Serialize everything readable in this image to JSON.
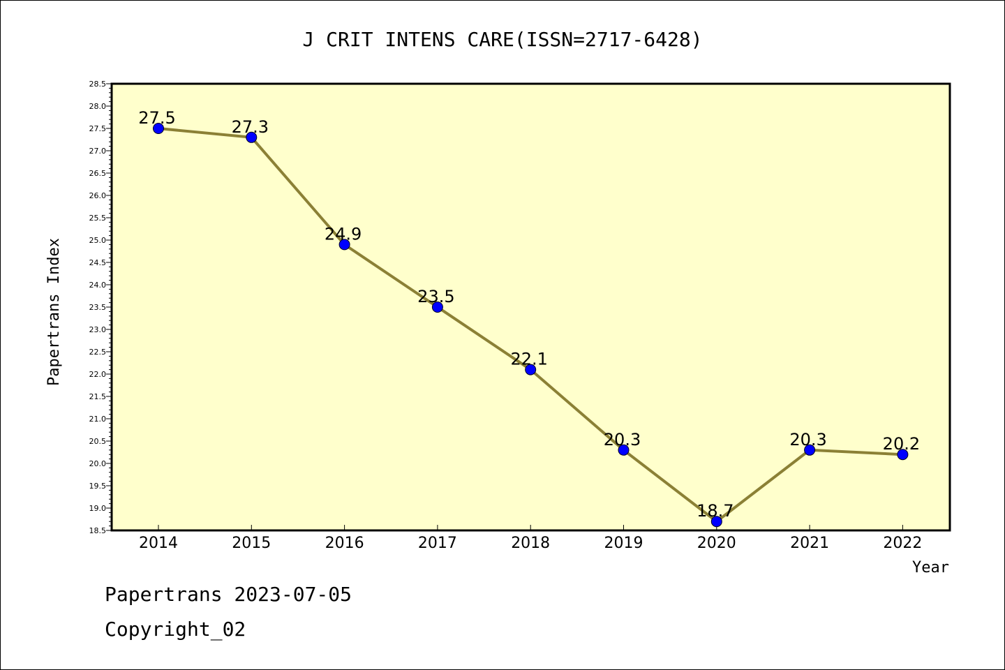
{
  "chart_data": {
    "type": "line",
    "title": "J CRIT INTENS CARE(ISSN=2717-6428)",
    "xlabel": "Year",
    "ylabel": "Papertrans Index",
    "categories": [
      "2014",
      "2015",
      "2016",
      "2017",
      "2018",
      "2019",
      "2020",
      "2021",
      "2022"
    ],
    "values": [
      27.5,
      27.3,
      24.9,
      23.5,
      22.1,
      20.3,
      18.7,
      20.3,
      20.2
    ],
    "data_labels": [
      "27.5",
      "27.3",
      "24.9",
      "23.5",
      "22.1",
      "20.3",
      "18.7",
      "20.3",
      "20.2"
    ],
    "ylim": [
      18.5,
      28.5
    ],
    "yticks": [
      "18.5",
      "19.0",
      "19.5",
      "20.0",
      "20.5",
      "21.0",
      "21.5",
      "22.0",
      "22.5",
      "23.0",
      "23.5",
      "24.0",
      "24.5",
      "25.0",
      "25.5",
      "26.0",
      "26.5",
      "27.0",
      "27.5",
      "28.0",
      "28.5"
    ],
    "grid": false,
    "colors": {
      "plot_background": "#ffffcc",
      "line": "#8b8035",
      "marker": "#0000ff"
    }
  },
  "footer": {
    "date_line": "Papertrans 2023-07-05",
    "copyright": "Copyright_02"
  }
}
